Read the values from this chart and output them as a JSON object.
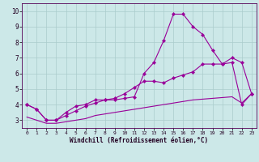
{
  "line1_x": [
    0,
    1,
    2,
    3,
    4,
    5,
    6,
    7,
    8,
    9,
    10,
    11,
    12,
    13,
    14,
    15,
    16,
    17,
    18,
    19,
    20,
    21,
    22,
    23
  ],
  "line1_y": [
    4.0,
    3.7,
    3.0,
    3.0,
    3.5,
    3.9,
    4.0,
    4.3,
    4.3,
    4.3,
    4.4,
    4.5,
    6.0,
    6.7,
    8.1,
    9.8,
    9.8,
    9.0,
    8.5,
    7.5,
    6.6,
    7.0,
    6.7,
    4.7
  ],
  "line2_x": [
    0,
    1,
    2,
    3,
    4,
    5,
    6,
    7,
    8,
    9,
    10,
    11,
    12,
    13,
    14,
    15,
    16,
    17,
    18,
    19,
    20,
    21,
    22,
    23
  ],
  "line2_y": [
    4.0,
    3.7,
    3.0,
    3.0,
    3.3,
    3.6,
    3.9,
    4.1,
    4.3,
    4.4,
    4.7,
    5.1,
    5.5,
    5.5,
    5.4,
    5.7,
    5.9,
    6.1,
    6.6,
    6.6,
    6.6,
    6.7,
    4.0,
    4.7
  ],
  "line3_x": [
    0,
    1,
    2,
    3,
    4,
    5,
    6,
    7,
    8,
    9,
    10,
    11,
    12,
    13,
    14,
    15,
    16,
    17,
    18,
    19,
    20,
    21,
    22,
    23
  ],
  "line3_y": [
    3.2,
    3.0,
    2.8,
    2.8,
    2.9,
    3.0,
    3.1,
    3.3,
    3.4,
    3.5,
    3.6,
    3.7,
    3.8,
    3.9,
    4.0,
    4.1,
    4.2,
    4.3,
    4.35,
    4.4,
    4.45,
    4.5,
    4.1,
    4.7
  ],
  "line_color": "#990099",
  "bg_color": "#cce8e8",
  "grid_color": "#aacccc",
  "xlabel": "Windchill (Refroidissement éolien,°C)",
  "ylim": [
    2.5,
    10.5
  ],
  "xlim": [
    -0.5,
    23.5
  ],
  "yticks": [
    3,
    4,
    5,
    6,
    7,
    8,
    9,
    10
  ],
  "xticks": [
    0,
    1,
    2,
    3,
    4,
    5,
    6,
    7,
    8,
    9,
    10,
    11,
    12,
    13,
    14,
    15,
    16,
    17,
    18,
    19,
    20,
    21,
    22,
    23
  ]
}
